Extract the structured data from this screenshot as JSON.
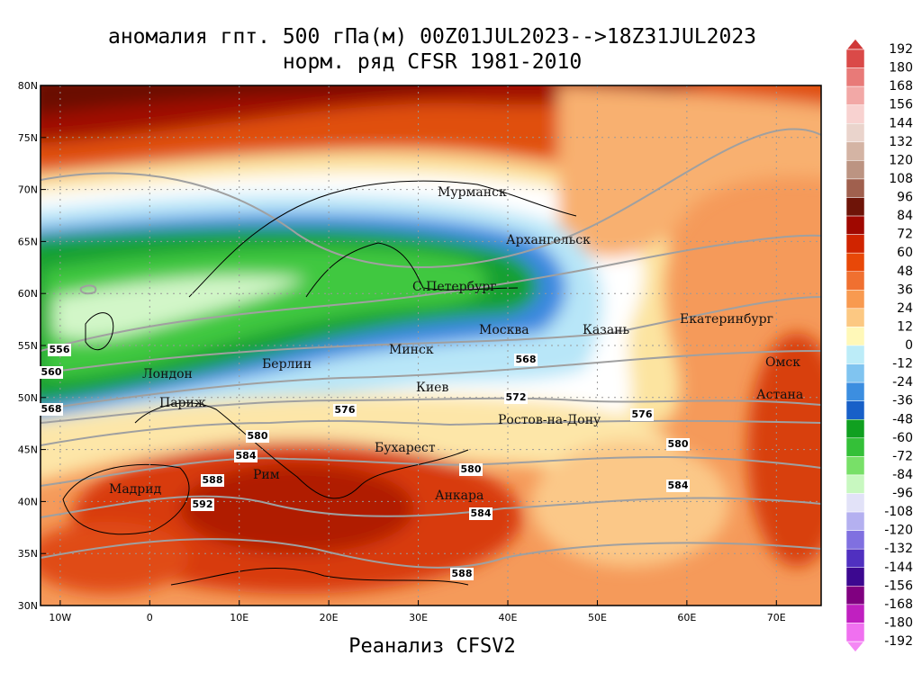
{
  "title": "аномалия гпт. 500 гПа(м) 00Z01JUL2023-->18Z31JUL2023",
  "subtitle": "норм. ряд CFSR 1981-2010",
  "footer": "Реанализ CFSV2",
  "map": {
    "xlim": [
      -12.2,
      75
    ],
    "ylim": [
      30,
      80
    ],
    "xticks": [
      {
        "value": -10,
        "label": "10W"
      },
      0,
      {
        "value": 10,
        "label": "10E"
      },
      {
        "value": 20,
        "label": "20E"
      },
      {
        "value": 30,
        "label": "30E"
      },
      {
        "value": 40,
        "label": "40E"
      },
      {
        "value": 50,
        "label": "50E"
      },
      {
        "value": 60,
        "label": "60E"
      },
      {
        "value": 70,
        "label": "70E"
      }
    ],
    "yticks": [
      {
        "value": 30,
        "label": "30N"
      },
      {
        "value": 35,
        "label": "35N"
      },
      {
        "value": 40,
        "label": "40N"
      },
      {
        "value": 45,
        "label": "45N"
      },
      {
        "value": 50,
        "label": "50N"
      },
      {
        "value": 55,
        "label": "55N"
      },
      {
        "value": 60,
        "label": "60N"
      },
      {
        "value": 65,
        "label": "65N"
      },
      {
        "value": 70,
        "label": "70N"
      },
      {
        "value": 75,
        "label": "75N"
      },
      {
        "value": 80,
        "label": "80N"
      }
    ],
    "grid": true,
    "cities": [
      "Мурманск",
      "Архангельск",
      "С.Петербург",
      "Москва",
      "Казань",
      "Екатеринбург",
      "Минск",
      "Берлин",
      "Лондон",
      "Париж",
      "Киев",
      "Ростов-на-Дону",
      "Омск",
      "Астана",
      "Бухарест",
      "Рим",
      "Мадрид",
      "Анкара"
    ],
    "contour_labels": [
      556,
      560,
      568,
      568,
      572,
      576,
      576,
      580,
      580,
      584,
      580,
      588,
      584,
      592,
      584,
      588
    ]
  },
  "colorbar": {
    "levels": [
      192,
      180,
      168,
      156,
      144,
      132,
      120,
      108,
      96,
      84,
      72,
      60,
      48,
      36,
      24,
      12,
      0,
      -12,
      -24,
      -36,
      -48,
      -60,
      -72,
      -84,
      -96,
      -108,
      -120,
      -132,
      -144,
      -156,
      -168,
      -180,
      -192
    ],
    "colors": [
      "#da4a48",
      "#e87a78",
      "#f2a8a6",
      "#f8d2d0",
      "#ead4cc",
      "#d4b4a4",
      "#bc9482",
      "#a0604e",
      "#6e1408",
      "#a00800",
      "#d02400",
      "#e84808",
      "#f07030",
      "#f89a50",
      "#fcc882",
      "#fff8b8",
      "#bcecf8",
      "#80c4f0",
      "#3c8ee0",
      "#1860c8",
      "#10a020",
      "#34c038",
      "#78e068",
      "#c8f8c0",
      "#e2e2f8",
      "#b4b0f0",
      "#8070e0",
      "#5030c0",
      "#3c0890",
      "#800080",
      "#c020c0",
      "#f070f0"
    ],
    "over_color": "#d03838",
    "under_color": "#f488f4"
  }
}
